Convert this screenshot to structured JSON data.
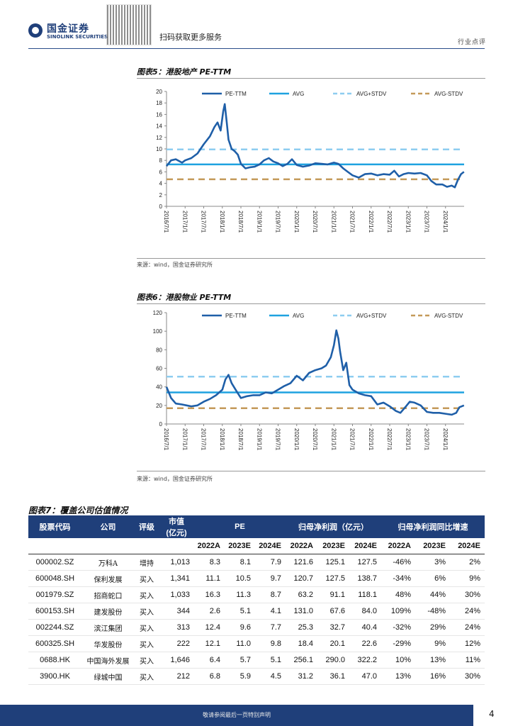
{
  "header": {
    "logo_cn": "国金证券",
    "logo_en": "SINOLINK SECURITIES",
    "qr_label": "扫码获取更多服务",
    "section_tag": "行业点评"
  },
  "colors": {
    "pe_ttm": "#1f5fa8",
    "avg": "#1fa2e0",
    "avg_plus_stdv": "#8ecdf0",
    "avg_minus_stdv": "#c49a5a",
    "brand": "#1f3f7a"
  },
  "charts": [
    {
      "title": "图表5：港股地产 PE-TTM",
      "source": "来源：wind，国金证券研究所",
      "chart_data": {
        "type": "line",
        "x": [
          "2016/7/1",
          "2017/1/1",
          "2017/7/1",
          "2018/1/1",
          "2018/7/1",
          "2019/1/1",
          "2019/7/1",
          "2020/1/1",
          "2020/7/1",
          "2021/1/1",
          "2021/7/1",
          "2022/1/1",
          "2022/7/1",
          "2023/1/1",
          "2023/7/1",
          "2024/1/1"
        ],
        "ylim": [
          0,
          20
        ],
        "yticks": [
          0,
          2,
          4,
          6,
          8,
          10,
          12,
          14,
          16,
          18,
          20
        ],
        "legend_position": "top",
        "series": [
          {
            "name": "PE-TTM",
            "style": "solid-thick",
            "points": [
              [
                "2016/7/1",
                7.0
              ],
              [
                "2016/8/15",
                8.0
              ],
              [
                "2016/10/1",
                8.2
              ],
              [
                "2016/12/1",
                7.6
              ],
              [
                "2017/1/1",
                8.0
              ],
              [
                "2017/3/1",
                8.4
              ],
              [
                "2017/5/1",
                9.2
              ],
              [
                "2017/7/1",
                10.8
              ],
              [
                "2017/9/1",
                12.2
              ],
              [
                "2017/10/15",
                13.8
              ],
              [
                "2017/11/15",
                14.6
              ],
              [
                "2017/12/15",
                13.2
              ],
              [
                "2018/1/10",
                16.5
              ],
              [
                "2018/1/25",
                17.8
              ],
              [
                "2018/2/15",
                14.5
              ],
              [
                "2018/3/1",
                11.6
              ],
              [
                "2018/4/1",
                10.0
              ],
              [
                "2018/5/1",
                9.6
              ],
              [
                "2018/6/1",
                9.0
              ],
              [
                "2018/7/1",
                7.4
              ],
              [
                "2018/8/15",
                6.6
              ],
              [
                "2018/10/1",
                6.8
              ],
              [
                "2018/11/15",
                6.9
              ],
              [
                "2019/1/1",
                7.3
              ],
              [
                "2019/2/15",
                8.0
              ],
              [
                "2019/4/1",
                8.4
              ],
              [
                "2019/5/15",
                7.8
              ],
              [
                "2019/7/1",
                7.5
              ],
              [
                "2019/8/15",
                7.0
              ],
              [
                "2019/10/1",
                7.4
              ],
              [
                "2019/11/15",
                8.2
              ],
              [
                "2020/1/1",
                7.2
              ],
              [
                "2020/3/1",
                6.9
              ],
              [
                "2020/5/1",
                7.1
              ],
              [
                "2020/7/1",
                7.5
              ],
              [
                "2020/9/1",
                7.4
              ],
              [
                "2020/11/1",
                7.3
              ],
              [
                "2021/1/1",
                7.6
              ],
              [
                "2021/2/15",
                7.4
              ],
              [
                "2021/4/1",
                6.6
              ],
              [
                "2021/5/15",
                6.0
              ],
              [
                "2021/7/1",
                5.4
              ],
              [
                "2021/9/1",
                5.0
              ],
              [
                "2021/11/1",
                5.6
              ],
              [
                "2022/1/1",
                5.7
              ],
              [
                "2022/3/1",
                5.4
              ],
              [
                "2022/5/1",
                5.6
              ],
              [
                "2022/7/1",
                5.5
              ],
              [
                "2022/8/15",
                6.2
              ],
              [
                "2022/10/1",
                5.2
              ],
              [
                "2022/11/15",
                5.6
              ],
              [
                "2023/1/1",
                5.8
              ],
              [
                "2023/3/1",
                5.7
              ],
              [
                "2023/5/1",
                5.8
              ],
              [
                "2023/7/1",
                5.4
              ],
              [
                "2023/8/15",
                4.4
              ],
              [
                "2023/10/1",
                3.8
              ],
              [
                "2023/12/1",
                3.8
              ],
              [
                "2024/1/15",
                3.4
              ],
              [
                "2024/3/1",
                3.6
              ],
              [
                "2024/4/1",
                3.3
              ],
              [
                "2024/5/1",
                4.6
              ],
              [
                "2024/6/1",
                5.6
              ],
              [
                "2024/6/30",
                6.0
              ]
            ]
          },
          {
            "name": "AVG",
            "style": "solid",
            "value": 7.3
          },
          {
            "name": "AVG+STDV",
            "style": "dashed",
            "value": 9.9
          },
          {
            "name": "AVG-STDV",
            "style": "dashed",
            "value": 4.7
          }
        ]
      }
    },
    {
      "title": "图表6：港股物业 PE-TTM",
      "source": "来源：wind，国金证券研究所",
      "chart_data": {
        "type": "line",
        "x": [
          "2016/7/1",
          "2017/1/1",
          "2017/7/1",
          "2018/1/1",
          "2018/7/1",
          "2019/1/1",
          "2019/7/1",
          "2020/1/1",
          "2020/7/1",
          "2021/1/1",
          "2021/7/1",
          "2022/1/1",
          "2022/7/1",
          "2023/1/1",
          "2023/7/1",
          "2024/1/1"
        ],
        "ylim": [
          0,
          120
        ],
        "yticks": [
          0,
          20,
          40,
          60,
          80,
          100,
          120
        ],
        "legend_position": "top",
        "series": [
          {
            "name": "PE-TTM",
            "style": "solid-thick",
            "points": [
              [
                "2016/7/1",
                40.0
              ],
              [
                "2016/8/15",
                28.0
              ],
              [
                "2016/10/1",
                22.0
              ],
              [
                "2016/12/1",
                21.0
              ],
              [
                "2017/1/15",
                20.0
              ],
              [
                "2017/3/1",
                19.0
              ],
              [
                "2017/5/1",
                20.0
              ],
              [
                "2017/7/1",
                24.0
              ],
              [
                "2017/9/1",
                27.0
              ],
              [
                "2017/11/1",
                31.0
              ],
              [
                "2018/1/1",
                37.0
              ],
              [
                "2018/2/1",
                48.0
              ],
              [
                "2018/3/1",
                53.0
              ],
              [
                "2018/4/1",
                44.0
              ],
              [
                "2018/5/15",
                36.0
              ],
              [
                "2018/7/1",
                28.0
              ],
              [
                "2018/9/1",
                30.0
              ],
              [
                "2018/11/1",
                31.0
              ],
              [
                "2019/1/1",
                31.0
              ],
              [
                "2019/3/1",
                34.0
              ],
              [
                "2019/5/1",
                33.0
              ],
              [
                "2019/7/1",
                37.0
              ],
              [
                "2019/9/1",
                41.0
              ],
              [
                "2019/11/1",
                44.0
              ],
              [
                "2020/1/1",
                52.0
              ],
              [
                "2020/3/1",
                47.0
              ],
              [
                "2020/5/1",
                55.0
              ],
              [
                "2020/7/1",
                58.0
              ],
              [
                "2020/9/1",
                60.0
              ],
              [
                "2020/10/15",
                63.0
              ],
              [
                "2020/12/1",
                72.0
              ],
              [
                "2021/1/1",
                85.0
              ],
              [
                "2021/1/25",
                101.0
              ],
              [
                "2021/2/15",
                92.0
              ],
              [
                "2021/3/1",
                78.0
              ],
              [
                "2021/4/1",
                58.0
              ],
              [
                "2021/5/1",
                66.0
              ],
              [
                "2021/6/1",
                42.0
              ],
              [
                "2021/7/1",
                37.0
              ],
              [
                "2021/9/1",
                33.0
              ],
              [
                "2021/11/1",
                31.0
              ],
              [
                "2022/1/1",
                30.0
              ],
              [
                "2022/3/1",
                21.0
              ],
              [
                "2022/5/1",
                23.0
              ],
              [
                "2022/7/1",
                19.0
              ],
              [
                "2022/9/1",
                14.0
              ],
              [
                "2022/10/15",
                12.0
              ],
              [
                "2022/12/1",
                18.0
              ],
              [
                "2023/1/15",
                24.0
              ],
              [
                "2023/3/1",
                23.0
              ],
              [
                "2023/5/1",
                20.0
              ],
              [
                "2023/7/1",
                13.0
              ],
              [
                "2023/9/1",
                12.0
              ],
              [
                "2023/11/1",
                12.0
              ],
              [
                "2024/1/1",
                11.0
              ],
              [
                "2024/3/1",
                10.0
              ],
              [
                "2024/4/15",
                12.0
              ],
              [
                "2024/5/15",
                18.0
              ],
              [
                "2024/6/30",
                20.0
              ]
            ]
          },
          {
            "name": "AVG",
            "style": "solid",
            "value": 34
          },
          {
            "name": "AVG+STDV",
            "style": "dashed",
            "value": 51
          },
          {
            "name": "AVG-STDV",
            "style": "dashed",
            "value": 17
          }
        ]
      }
    }
  ],
  "table": {
    "title": "图表7：覆盖公司估值情况",
    "head1": {
      "code": "股票代码",
      "company": "公司",
      "rating": "评级",
      "mcap": "市值",
      "mcap_unit": "(亿元)",
      "pe": "PE",
      "np": "归母净利润（亿元）",
      "npg": "归母净利润同比增速"
    },
    "years": [
      "2022A",
      "2023E",
      "2024E",
      "2022A",
      "2023E",
      "2024E",
      "2022A",
      "2023E",
      "2024E"
    ],
    "rows": [
      [
        "000002.SZ",
        "万科A",
        "增持",
        "1,013",
        "8.3",
        "8.1",
        "7.9",
        "121.6",
        "125.1",
        "127.5",
        "-46%",
        "3%",
        "2%"
      ],
      [
        "600048.SH",
        "保利发展",
        "买入",
        "1,341",
        "11.1",
        "10.5",
        "9.7",
        "120.7",
        "127.5",
        "138.7",
        "-34%",
        "6%",
        "9%"
      ],
      [
        "001979.SZ",
        "招商蛇口",
        "买入",
        "1,033",
        "16.3",
        "11.3",
        "8.7",
        "63.2",
        "91.1",
        "118.1",
        "48%",
        "44%",
        "30%"
      ],
      [
        "600153.SH",
        "建发股份",
        "买入",
        "344",
        "2.6",
        "5.1",
        "4.1",
        "131.0",
        "67.6",
        "84.0",
        "109%",
        "-48%",
        "24%"
      ],
      [
        "002244.SZ",
        "滨江集团",
        "买入",
        "313",
        "12.4",
        "9.6",
        "7.7",
        "25.3",
        "32.7",
        "40.4",
        "-32%",
        "29%",
        "24%"
      ],
      [
        "600325.SH",
        "华发股份",
        "买入",
        "222",
        "12.1",
        "11.0",
        "9.8",
        "18.4",
        "20.1",
        "22.6",
        "-29%",
        "9%",
        "12%"
      ],
      [
        "0688.HK",
        "中国海外发展",
        "买入",
        "1,646",
        "6.4",
        "5.7",
        "5.1",
        "256.1",
        "290.0",
        "322.2",
        "10%",
        "13%",
        "11%"
      ],
      [
        "3900.HK",
        "绿城中国",
        "买入",
        "212",
        "6.8",
        "5.9",
        "4.5",
        "31.2",
        "36.1",
        "47.0",
        "13%",
        "16%",
        "30%"
      ]
    ]
  },
  "footer": {
    "disclaimer": "敬请参阅最后一页特别声明",
    "page_number": "4"
  }
}
